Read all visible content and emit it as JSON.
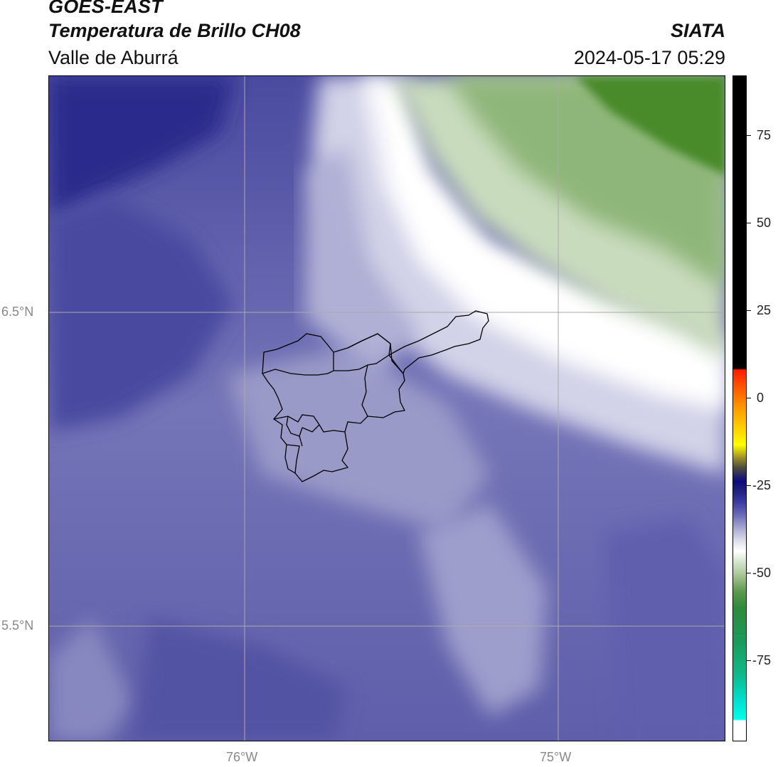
{
  "header": {
    "satellite": "GOES-EAST",
    "product": "Temperatura de Brillo CH08",
    "region": "Valle de Aburrá",
    "agency": "SIATA",
    "datetime": "2024-05-17 05:29"
  },
  "axes": {
    "lat_labels": [
      "6.5°N",
      "5.5°N"
    ],
    "lon_labels": [
      "76°W",
      "75°W"
    ]
  },
  "colorbar": {
    "ticks": [
      "75",
      "50",
      "25",
      "0",
      "-25",
      "-50",
      "-75"
    ]
  },
  "colors": {
    "cold_deep": "#24258a",
    "base_purple": "#6a6aae",
    "light_purple": "#b4b4d6",
    "white_band": "#ffffff",
    "green_dark": "#3f8423",
    "green_light": "#c6dab8"
  }
}
